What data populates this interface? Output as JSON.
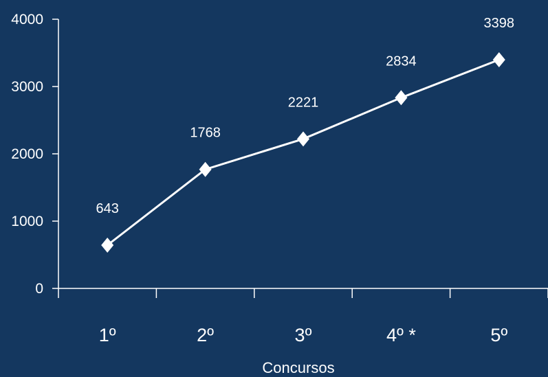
{
  "chart_data": {
    "type": "line",
    "categories": [
      "1º",
      "2º",
      "3º",
      "4º *",
      "5º"
    ],
    "series": [
      {
        "values": [
          643,
          1768,
          2221,
          2834,
          3398
        ]
      }
    ],
    "data_labels": [
      "643",
      "1768",
      "2221",
      "2834",
      "3398"
    ],
    "xlabel": "Concursos",
    "ylabel": "",
    "ylim": [
      0,
      4000
    ],
    "yticks": [
      0,
      1000,
      2000,
      3000,
      4000
    ],
    "ytick_labels": [
      "0",
      "1000",
      "2000",
      "3000",
      "4000"
    ],
    "grid": false,
    "legend": "none",
    "marker": "diamond",
    "colors": {
      "background": "#14375f",
      "line": "#ffffff",
      "text": "#ffffff"
    }
  }
}
